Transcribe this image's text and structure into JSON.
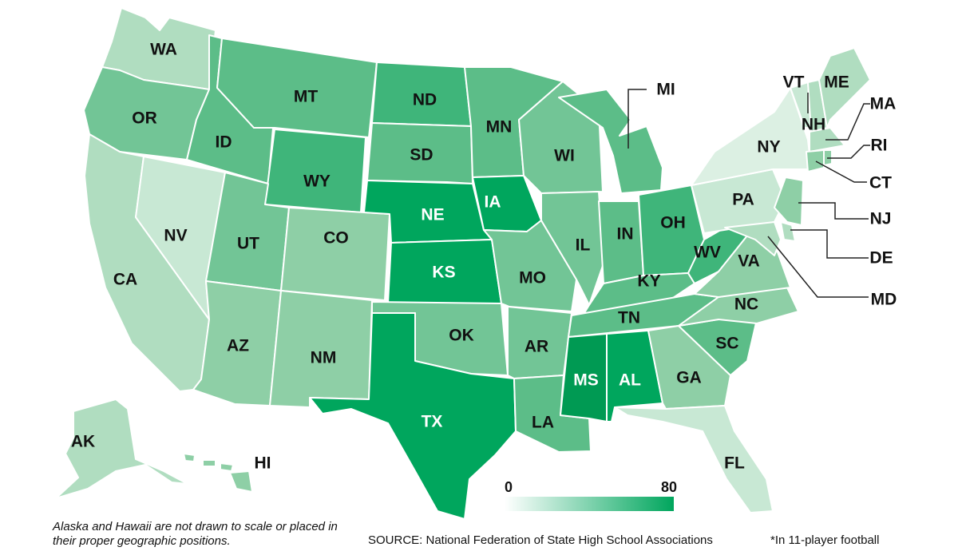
{
  "map": {
    "colors": {
      "c1": "#dcf0e3",
      "c2": "#c8e8d4",
      "c3": "#b0ddc0",
      "c4": "#8ecfa6",
      "c5": "#72c596",
      "c6": "#5cbd88",
      "c7": "#3fb57a",
      "c8": "#00a65d",
      "c9": "#009a53",
      "border": "#ffffff",
      "label_dark": "#111111",
      "label_light": "#ffffff"
    },
    "states": [
      {
        "id": "WA",
        "label": "WA",
        "shade": "c3"
      },
      {
        "id": "OR",
        "label": "OR",
        "shade": "c5"
      },
      {
        "id": "CA",
        "label": "CA",
        "shade": "c3"
      },
      {
        "id": "NV",
        "label": "NV",
        "shade": "c2"
      },
      {
        "id": "ID",
        "label": "ID",
        "shade": "c6"
      },
      {
        "id": "MT",
        "label": "MT",
        "shade": "c6"
      },
      {
        "id": "WY",
        "label": "WY",
        "shade": "c7"
      },
      {
        "id": "UT",
        "label": "UT",
        "shade": "c5"
      },
      {
        "id": "AZ",
        "label": "AZ",
        "shade": "c4"
      },
      {
        "id": "CO",
        "label": "CO",
        "shade": "c4"
      },
      {
        "id": "NM",
        "label": "NM",
        "shade": "c4"
      },
      {
        "id": "ND",
        "label": "ND",
        "shade": "c7"
      },
      {
        "id": "SD",
        "label": "SD",
        "shade": "c6"
      },
      {
        "id": "NE",
        "label": "NE",
        "shade": "c8"
      },
      {
        "id": "KS",
        "label": "KS",
        "shade": "c8"
      },
      {
        "id": "OK",
        "label": "OK",
        "shade": "c5"
      },
      {
        "id": "TX",
        "label": "TX",
        "shade": "c8"
      },
      {
        "id": "MN",
        "label": "MN",
        "shade": "c6"
      },
      {
        "id": "IA",
        "label": "IA",
        "shade": "c8"
      },
      {
        "id": "MO",
        "label": "MO",
        "shade": "c5"
      },
      {
        "id": "AR",
        "label": "AR",
        "shade": "c5"
      },
      {
        "id": "LA",
        "label": "LA",
        "shade": "c6"
      },
      {
        "id": "WI",
        "label": "WI",
        "shade": "c5"
      },
      {
        "id": "IL",
        "label": "IL",
        "shade": "c5"
      },
      {
        "id": "MI",
        "label": "MI",
        "shade": "c6"
      },
      {
        "id": "IN",
        "label": "IN",
        "shade": "c6"
      },
      {
        "id": "OH",
        "label": "OH",
        "shade": "c7"
      },
      {
        "id": "KY",
        "label": "KY",
        "shade": "c6"
      },
      {
        "id": "TN",
        "label": "TN",
        "shade": "c6"
      },
      {
        "id": "MS",
        "label": "MS",
        "shade": "c9"
      },
      {
        "id": "AL",
        "label": "AL",
        "shade": "c8"
      },
      {
        "id": "GA",
        "label": "GA",
        "shade": "c4"
      },
      {
        "id": "FL",
        "label": "FL",
        "shade": "c2"
      },
      {
        "id": "SC",
        "label": "SC",
        "shade": "c6"
      },
      {
        "id": "NC",
        "label": "NC",
        "shade": "c4"
      },
      {
        "id": "VA",
        "label": "VA",
        "shade": "c4"
      },
      {
        "id": "WV",
        "label": "WV",
        "shade": "c7"
      },
      {
        "id": "PA",
        "label": "PA",
        "shade": "c2"
      },
      {
        "id": "NY",
        "label": "NY",
        "shade": "c1"
      },
      {
        "id": "VT",
        "label": "VT",
        "shade": "c2"
      },
      {
        "id": "NH",
        "label": "NH",
        "shade": "c3"
      },
      {
        "id": "ME",
        "label": "ME",
        "shade": "c3"
      },
      {
        "id": "MA",
        "label": "MA",
        "shade": "c3"
      },
      {
        "id": "RI",
        "label": "RI",
        "shade": "c4"
      },
      {
        "id": "CT",
        "label": "CT",
        "shade": "c4"
      },
      {
        "id": "NJ",
        "label": "NJ",
        "shade": "c4"
      },
      {
        "id": "DE",
        "label": "DE",
        "shade": "c3"
      },
      {
        "id": "MD",
        "label": "MD",
        "shade": "c3"
      },
      {
        "id": "AK",
        "label": "AK",
        "shade": "c3"
      },
      {
        "id": "HI",
        "label": "HI",
        "shade": "c4"
      }
    ]
  },
  "legend": {
    "min": "0",
    "max": "80",
    "color_min": "#ffffff",
    "color_max": "#00a65d"
  },
  "notes": {
    "alaska_hawaii": "Alaska and Hawaii are not drawn to scale or placed in their proper geographic positions.",
    "source": "SOURCE: National Federation of State High School Associations",
    "footnote": "*In 11-player football"
  }
}
